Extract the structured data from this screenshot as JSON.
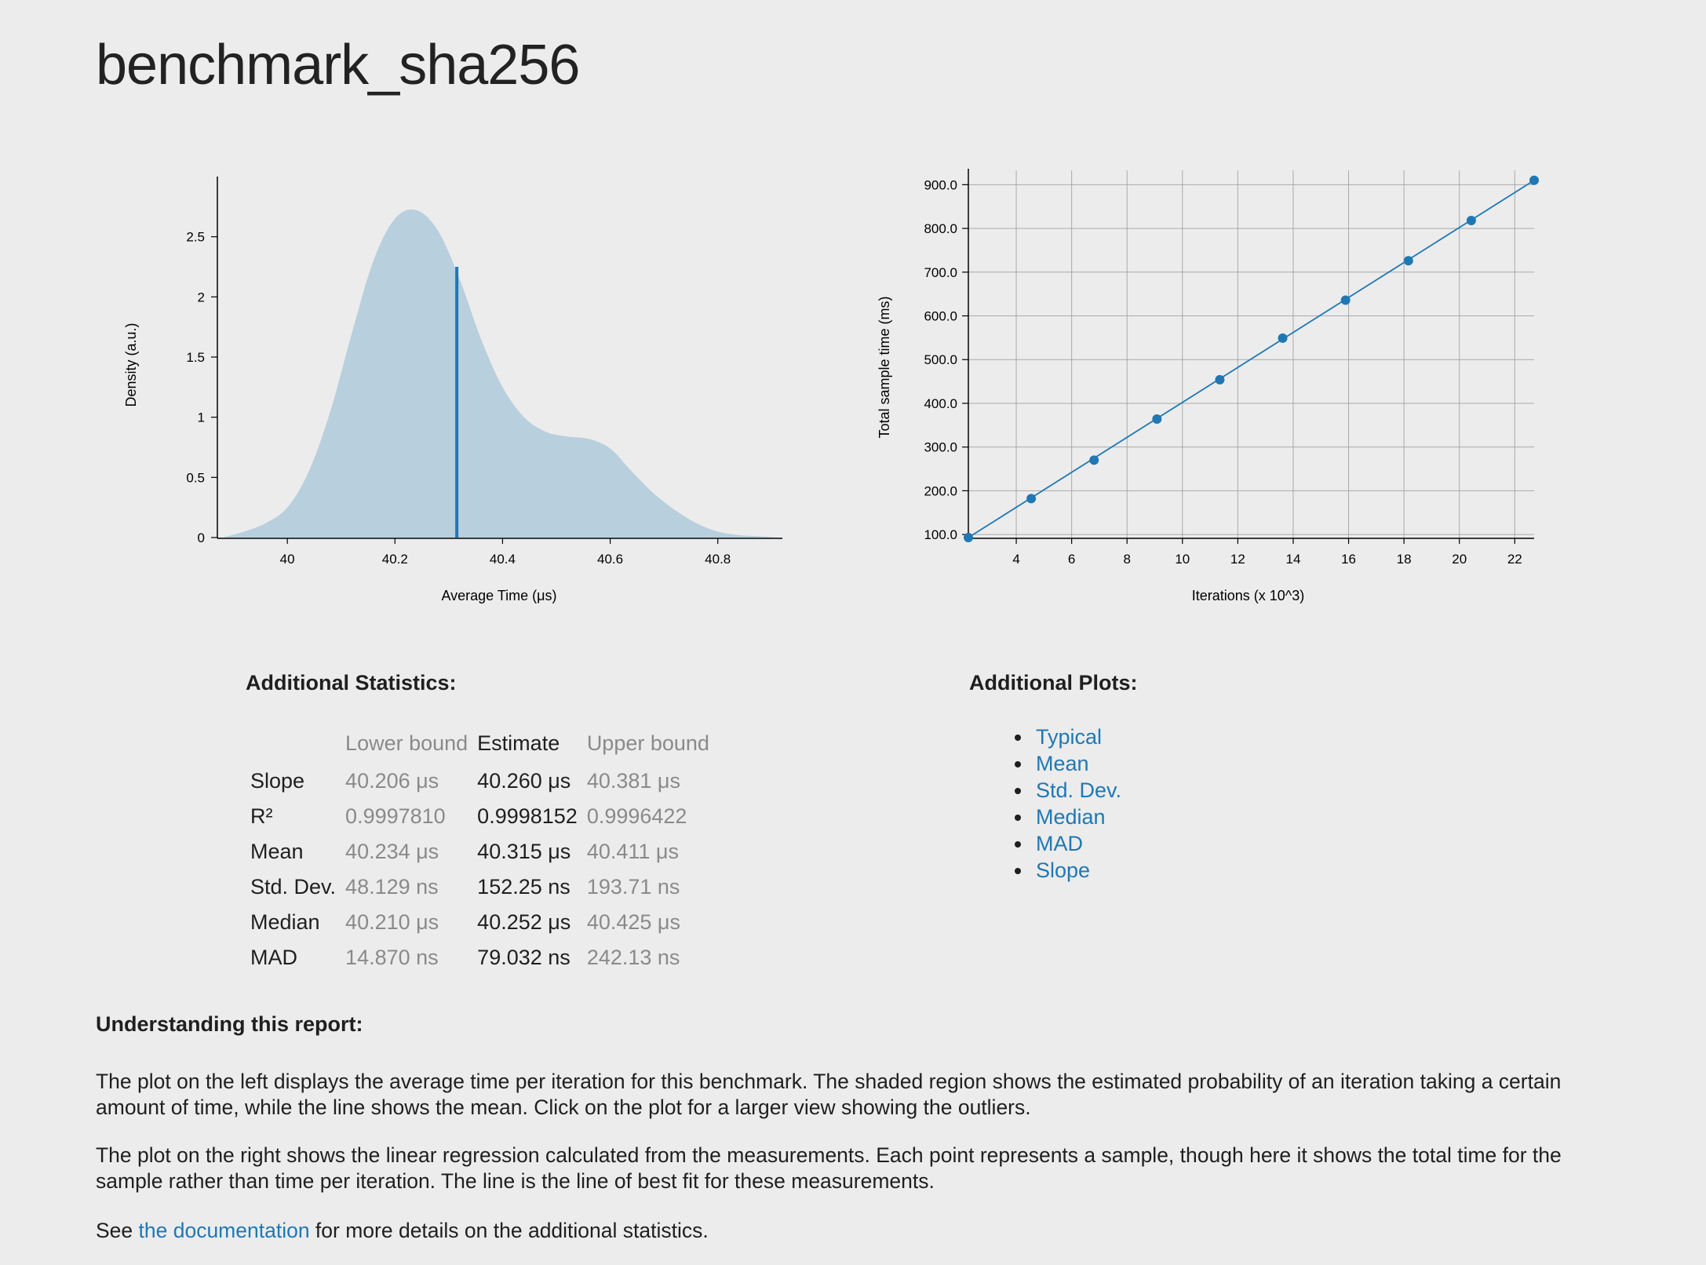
{
  "title": "benchmark_sha256",
  "colors": {
    "background": "#ececec",
    "density_fill": "#b8cfdd",
    "accent": "#1f78b4",
    "muted_text": "#8a8a8a"
  },
  "chart_data": [
    {
      "type": "area",
      "xlabel": "Average Time (μs)",
      "ylabel": "Density (a.u.)",
      "xlim": [
        39.87,
        40.92
      ],
      "ylim": [
        0,
        3.0
      ],
      "x_ticks": [
        "40",
        "40.2",
        "40.4",
        "40.6",
        "40.8"
      ],
      "y_ticks": [
        "0",
        "0.5",
        "1",
        "1.5",
        "2",
        "2.5"
      ],
      "x": [
        39.88,
        39.92,
        39.96,
        40.0,
        40.04,
        40.08,
        40.12,
        40.16,
        40.2,
        40.24,
        40.28,
        40.32,
        40.36,
        40.4,
        40.44,
        40.48,
        40.52,
        40.56,
        40.6,
        40.64,
        40.68,
        40.72,
        40.76,
        40.8,
        40.84,
        40.88,
        40.91
      ],
      "y": [
        0.0,
        0.05,
        0.12,
        0.25,
        0.55,
        1.05,
        1.7,
        2.3,
        2.65,
        2.72,
        2.55,
        2.15,
        1.65,
        1.25,
        1.0,
        0.88,
        0.84,
        0.82,
        0.74,
        0.55,
        0.37,
        0.23,
        0.12,
        0.05,
        0.02,
        0.01,
        0.0
      ],
      "mean_line": {
        "x": 40.315,
        "y": 2.25
      }
    },
    {
      "type": "scatter",
      "xlabel": "Iterations (x 10^3)",
      "ylabel": "Total sample time (ms)",
      "xlim": [
        2.27,
        22.7
      ],
      "ylim": [
        93,
        915
      ],
      "x_ticks": [
        "4",
        "6",
        "8",
        "10",
        "12",
        "14",
        "16",
        "18",
        "20",
        "22"
      ],
      "y_ticks": [
        "100.0",
        "200.0",
        "300.0",
        "400.0",
        "500.0",
        "600.0",
        "700.0",
        "800.0",
        "900.0"
      ],
      "grid": true,
      "x": [
        2.27,
        4.54,
        6.81,
        9.08,
        11.35,
        13.62,
        15.89,
        18.16,
        20.43,
        22.7
      ],
      "y": [
        93,
        182,
        270,
        364,
        454,
        549,
        636,
        726,
        818,
        910
      ],
      "fit_line": {
        "x": [
          2.27,
          22.7
        ],
        "y": [
          93,
          910
        ]
      }
    }
  ],
  "stats": {
    "heading": "Additional Statistics:",
    "columns": {
      "lower": "Lower bound",
      "estimate": "Estimate",
      "upper": "Upper bound"
    },
    "rows": [
      {
        "name": "Slope",
        "lower": "40.206 μs",
        "estimate": "40.260 μs",
        "upper": "40.381 μs"
      },
      {
        "name": "R²",
        "lower": "0.9997810",
        "estimate": "0.9998152",
        "upper": "0.9996422"
      },
      {
        "name": "Mean",
        "lower": "40.234 μs",
        "estimate": "40.315 μs",
        "upper": "40.411 μs"
      },
      {
        "name": "Std. Dev.",
        "lower": "48.129 ns",
        "estimate": "152.25 ns",
        "upper": "193.71 ns"
      },
      {
        "name": "Median",
        "lower": "40.210 μs",
        "estimate": "40.252 μs",
        "upper": "40.425 μs"
      },
      {
        "name": "MAD",
        "lower": "14.870 ns",
        "estimate": "79.032 ns",
        "upper": "242.13 ns"
      }
    ]
  },
  "additional_plots": {
    "heading": "Additional Plots:",
    "links": [
      "Typical",
      "Mean",
      "Std. Dev.",
      "Median",
      "MAD",
      "Slope"
    ]
  },
  "understanding": {
    "heading": "Understanding this report:",
    "para1": "The plot on the left displays the average time per iteration for this benchmark. The shaded region shows the estimated probability of an iteration taking a certain amount of time, while the line shows the mean. Click on the plot for a larger view showing the outliers.",
    "para2": "The plot on the right shows the linear regression calculated from the measurements. Each point represents a sample, though here it shows the total time for the sample rather than time per iteration. The line is the line of best fit for these measurements.",
    "para3_before": "See ",
    "para3_link": "the documentation",
    "para3_after": " for more details on the additional statistics."
  }
}
